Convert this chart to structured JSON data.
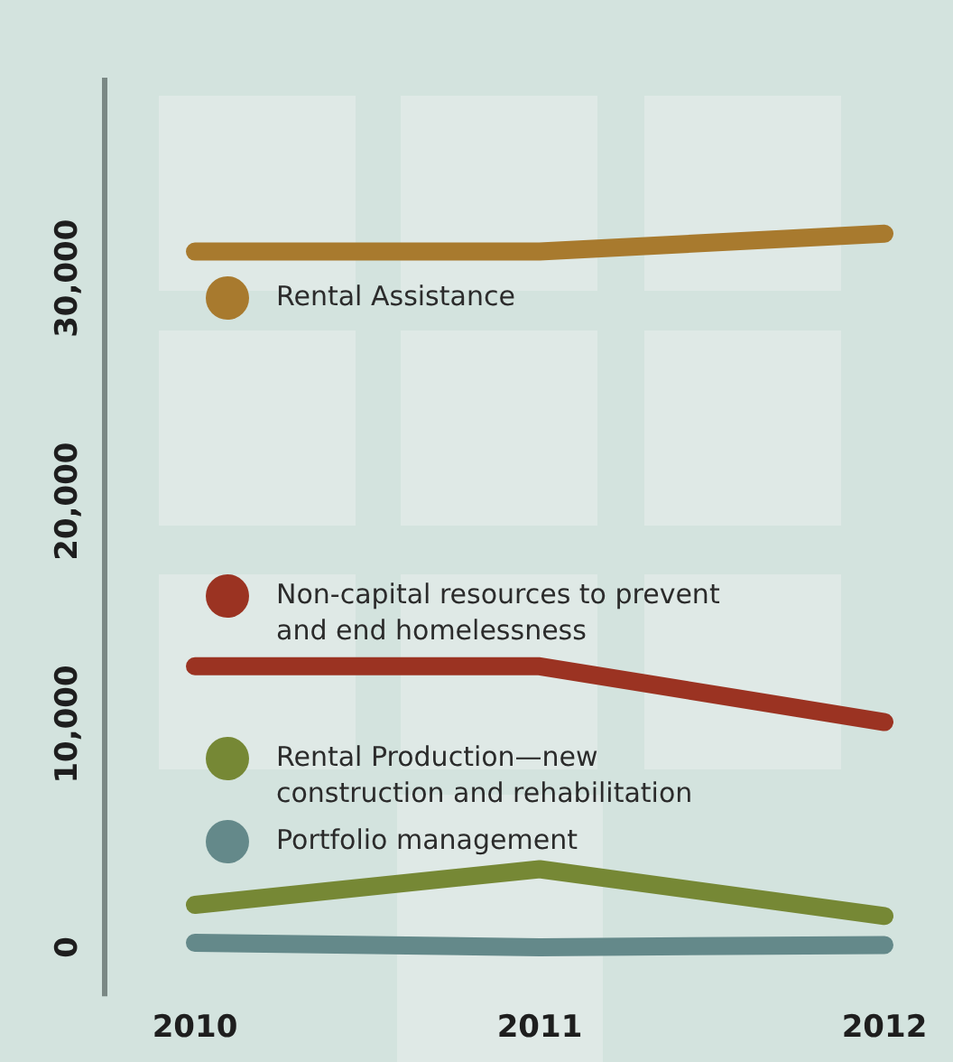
{
  "chart_data": {
    "type": "line",
    "categories": [
      "2010",
      "2011",
      "2012"
    ],
    "series": [
      {
        "name": "Rental Assistance",
        "color": "#a87a2e",
        "values": [
          31200,
          31200,
          32000
        ]
      },
      {
        "name": "Non-capital resources to prevent and end homelessness",
        "color": "#9b3322",
        "values": [
          12600,
          12600,
          10100
        ]
      },
      {
        "name": "Rental Production—new construction and rehabilitation",
        "color": "#768835",
        "values": [
          1900,
          3500,
          1400
        ]
      },
      {
        "name": "Portfolio management",
        "color": "#64898a",
        "values": [
          200,
          0,
          100
        ]
      }
    ],
    "ylim": [
      -2200,
      39000
    ],
    "yticks": [
      0,
      {
        "value": 10000,
        "label": "10,000"
      },
      {
        "value": 20000,
        "label": "20,000"
      },
      {
        "value": 30000,
        "label": "30,000"
      }
    ],
    "grid": false,
    "legend": "left",
    "marker": "none",
    "line_style": "solid"
  }
}
